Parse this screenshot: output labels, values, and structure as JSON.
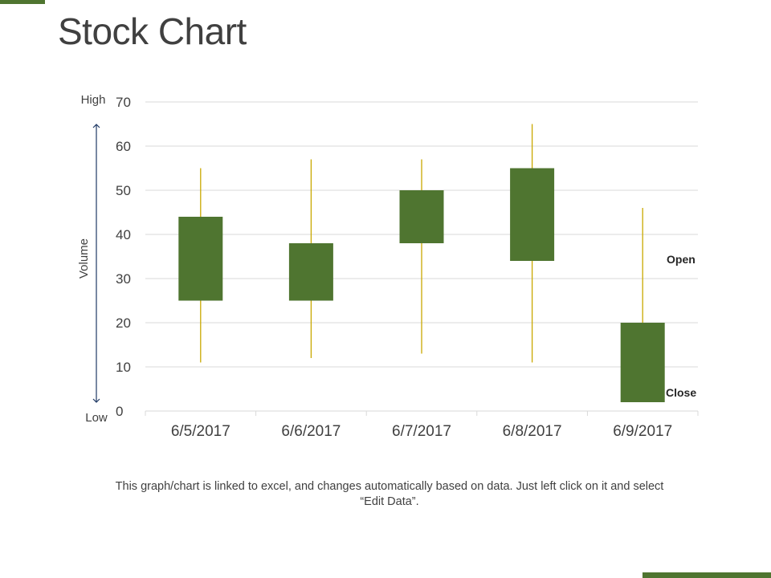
{
  "slide": {
    "title": "Stock Chart",
    "caption": "This graph/chart is linked to excel, and changes automatically based on data. Just left click on it and select “Edit Data”.",
    "accent_color": "#4f7530"
  },
  "chart_data": {
    "type": "candlestick",
    "categories": [
      "6/5/2017",
      "6/6/2017",
      "6/7/2017",
      "6/8/2017",
      "6/9/2017"
    ],
    "open": [
      25,
      25,
      38,
      34,
      20
    ],
    "close": [
      44,
      38,
      50,
      55,
      2
    ],
    "high": [
      55,
      57,
      57,
      65,
      46
    ],
    "low": [
      11,
      12,
      13,
      11,
      2
    ],
    "y_ticks": [
      0,
      10,
      20,
      30,
      40,
      50,
      60,
      70
    ],
    "ylim": [
      0,
      70
    ],
    "ylabel": "Volume",
    "axis_high_label": "High",
    "axis_low_label": "Low",
    "annotations": {
      "open": "Open",
      "close": "Close"
    },
    "colors": {
      "body": "#4f7530",
      "wick": "#c9a800",
      "grid": "#d9d9d9",
      "axis_arrow": "#1f3864"
    },
    "grid": true
  }
}
